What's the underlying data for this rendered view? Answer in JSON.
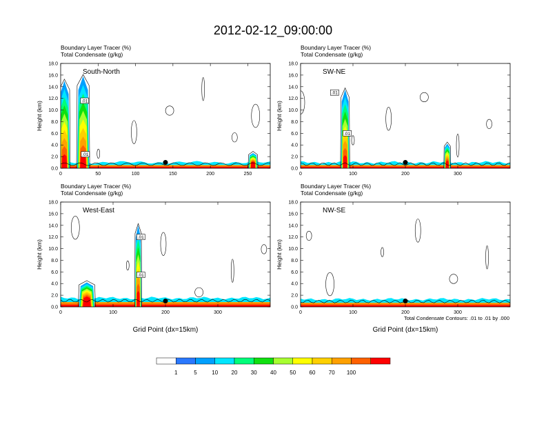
{
  "figure": {
    "title": "2012-02-12_09:00:00",
    "footnote": "Total Condensate Contours: .01 to .01 by .000"
  },
  "colors": {
    "scale": [
      "#ffffff",
      "#2a78ff",
      "#00a0ff",
      "#00e6ff",
      "#00ff7a",
      "#10e010",
      "#a8ff30",
      "#ffff00",
      "#ffd000",
      "#ffa000",
      "#ff6000",
      "#ff0000"
    ],
    "contour": "#000000",
    "marker": "#000000"
  },
  "chart_data": [
    {
      "type": "heatmap",
      "panel_label": "South-North",
      "header_lines": [
        "Boundary Layer Tracer   (%)",
        "Total Condensate   (g/kg)"
      ],
      "ylabel": "Height (km)",
      "xlabel": "",
      "xlim": [
        0,
        280
      ],
      "xticks": [
        0,
        50,
        100,
        150,
        200,
        250
      ],
      "ylim": [
        0,
        18
      ],
      "yticks": [
        0.0,
        2.0,
        4.0,
        6.0,
        8.0,
        10.0,
        12.0,
        14.0,
        16.0,
        18.0
      ],
      "ytick_labels": [
        "0.0",
        "2.0",
        "4.0",
        "6.0",
        "8.0",
        "10.0",
        "12.0",
        "14.0",
        "16.0",
        "18.0"
      ],
      "boundary_layer_top_km": 1.0,
      "plumes": [
        {
          "x_center": 30,
          "width": 16,
          "top_km": 15.8
        },
        {
          "x_center": 5,
          "width": 14,
          "top_km": 15.0
        },
        {
          "x_center": 257,
          "width": 12,
          "top_km": 2.6
        }
      ],
      "contour_labels": [
        {
          "x": 32,
          "y": 11.6,
          "text": ".01"
        },
        {
          "x": 33,
          "y": 2.4,
          "text": ".01"
        }
      ],
      "marker_point": [
        140,
        1.0
      ]
    },
    {
      "type": "heatmap",
      "panel_label": "SW-NE",
      "header_lines": [
        "Boundary Layer Tracer   (%)",
        "Total Condensate   (g/kg)"
      ],
      "ylabel": "Height (km)",
      "xlabel": "",
      "xlim": [
        0,
        400
      ],
      "xticks": [
        0,
        100,
        200,
        300
      ],
      "ylim": [
        0,
        18
      ],
      "yticks": [
        0.0,
        2.0,
        4.0,
        6.0,
        8.0,
        10.0,
        12.0,
        14.0,
        16.0,
        18.0
      ],
      "ytick_labels": [
        "0.0",
        "2.0",
        "4.0",
        "6.0",
        "8.0",
        "10.0",
        "12.0",
        "14.0",
        "16.0",
        "18.0"
      ],
      "boundary_layer_top_km": 1.0,
      "plumes": [
        {
          "x_center": 85,
          "width": 16,
          "top_km": 13.5
        },
        {
          "x_center": 280,
          "width": 12,
          "top_km": 4.2
        }
      ],
      "contour_labels": [
        {
          "x": 65,
          "y": 13.0,
          "text": ".01"
        },
        {
          "x": 89,
          "y": 6.0,
          "text": ".01"
        }
      ],
      "marker_point": [
        200,
        1.0
      ]
    },
    {
      "type": "heatmap",
      "panel_label": "West-East",
      "header_lines": [
        "Boundary Layer Tracer   (%)",
        "Total Condensate   (g/kg)"
      ],
      "ylabel": "Height (km)",
      "xlabel": "Grid Point (dx=15km)",
      "xlim": [
        0,
        400
      ],
      "xticks": [
        0,
        100,
        200,
        300
      ],
      "ylim": [
        0,
        18
      ],
      "yticks": [
        0.0,
        2.0,
        4.0,
        6.0,
        8.0,
        10.0,
        12.0,
        14.0,
        16.0,
        18.0
      ],
      "ytick_labels": [
        "0.0",
        "2.0",
        "4.0",
        "6.0",
        "8.0",
        "10.0",
        "12.0",
        "14.0",
        "16.0",
        "18.0"
      ],
      "boundary_layer_top_km": 1.5,
      "plumes": [
        {
          "x_center": 148,
          "width": 12,
          "top_km": 14.0
        },
        {
          "x_center": 50,
          "width": 30,
          "top_km": 4.2
        }
      ],
      "contour_labels": [
        {
          "x": 153,
          "y": 12.0,
          "text": ".01"
        },
        {
          "x": 153,
          "y": 5.5,
          "text": ".01"
        }
      ],
      "marker_point": [
        200,
        1.0
      ]
    },
    {
      "type": "heatmap",
      "panel_label": "NW-SE",
      "header_lines": [
        "Boundary Layer Tracer   (%)",
        "Total Condensate   (g/kg)"
      ],
      "ylabel": "Height (km)",
      "xlabel": "Grid Point (dx=15km)",
      "xlim": [
        0,
        400
      ],
      "xticks": [
        0,
        100,
        200,
        300
      ],
      "ylim": [
        0,
        18
      ],
      "yticks": [
        0.0,
        2.0,
        4.0,
        6.0,
        8.0,
        10.0,
        12.0,
        14.0,
        16.0,
        18.0
      ],
      "ytick_labels": [
        "0.0",
        "2.0",
        "4.0",
        "6.0",
        "8.0",
        "10.0",
        "12.0",
        "14.0",
        "16.0",
        "18.0"
      ],
      "boundary_layer_top_km": 1.3,
      "plumes": [],
      "contour_labels": [],
      "marker_point": [
        200,
        1.0
      ]
    }
  ],
  "colorbar": {
    "labels": [
      "1",
      "5",
      "10",
      "20",
      "30",
      "40",
      "50",
      "60",
      "70",
      "100"
    ]
  }
}
